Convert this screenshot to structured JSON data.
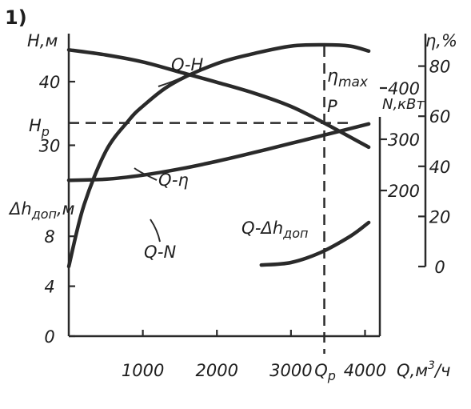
{
  "figure_label": "1)",
  "chart_data": {
    "type": "line",
    "x_axis": {
      "label": "Q,м³/ч",
      "label_base": "Q,м",
      "label_sup": "3",
      "label_tail": "/ч",
      "range": [
        0,
        4200
      ],
      "ticks": [
        "1000",
        "2000",
        "3000",
        "4000"
      ],
      "tick_values": [
        1000,
        2000,
        3000,
        4000
      ],
      "marker_label": "Qр",
      "marker_value": 3450
    },
    "y_axes": {
      "head": {
        "label": "H,м",
        "ticks": [
          "40",
          "30"
        ],
        "tick_values": [
          40,
          30
        ],
        "marker_label": "Hр",
        "marker_value": 33.5
      },
      "npsh": {
        "label": "Δhдоп,м",
        "ticks": [
          "8",
          "4",
          "0"
        ],
        "tick_values": [
          8,
          4,
          0
        ]
      },
      "power": {
        "label": "N,кВт",
        "ticks": [
          "400",
          "300",
          "200"
        ],
        "tick_values": [
          400,
          300,
          200
        ]
      },
      "efficiency": {
        "label": "η,%",
        "ticks": [
          "80",
          "60",
          "40",
          "20",
          "0"
        ],
        "tick_values": [
          80,
          60,
          40,
          20,
          0
        ]
      }
    },
    "series": [
      {
        "name": "Q-H",
        "axis": "head",
        "x": [
          0,
          500,
          1000,
          1500,
          2000,
          2500,
          3000,
          3450,
          4050
        ],
        "y": [
          45,
          44.2,
          43.1,
          41.5,
          39.9,
          38.2,
          36.1,
          33.5,
          29.7
        ]
      },
      {
        "name": "Q-η",
        "axis": "efficiency",
        "x": [
          0,
          200,
          500,
          800,
          1000,
          1400,
          2000,
          2500,
          3000,
          3450,
          3800,
          4050
        ],
        "y": [
          0,
          24,
          46,
          58,
          64,
          73,
          81,
          85,
          88,
          88.5,
          88,
          86
        ]
      },
      {
        "name": "Q-N",
        "axis": "power",
        "x": [
          0,
          500,
          1000,
          1500,
          2000,
          2500,
          3000,
          3500,
          4050
        ],
        "y": [
          220,
          222,
          230,
          242,
          257,
          274,
          292,
          310,
          330
        ]
      },
      {
        "name": "Q-Δhдоп",
        "axis": "npsh",
        "x": [
          2600,
          3000,
          3400,
          3800,
          4050
        ],
        "y": [
          5.7,
          5.9,
          6.7,
          8.0,
          9.1
        ]
      }
    ],
    "annotations": [
      {
        "text": "ηmax",
        "base": "η",
        "sub": "max"
      },
      {
        "text": "P"
      }
    ],
    "curve_labels": {
      "q_h": "Q-H",
      "q_eta": "Q-η",
      "q_n": "Q-N",
      "q_dh_base": "Q-Δh",
      "q_dh_sub": "доп"
    }
  }
}
